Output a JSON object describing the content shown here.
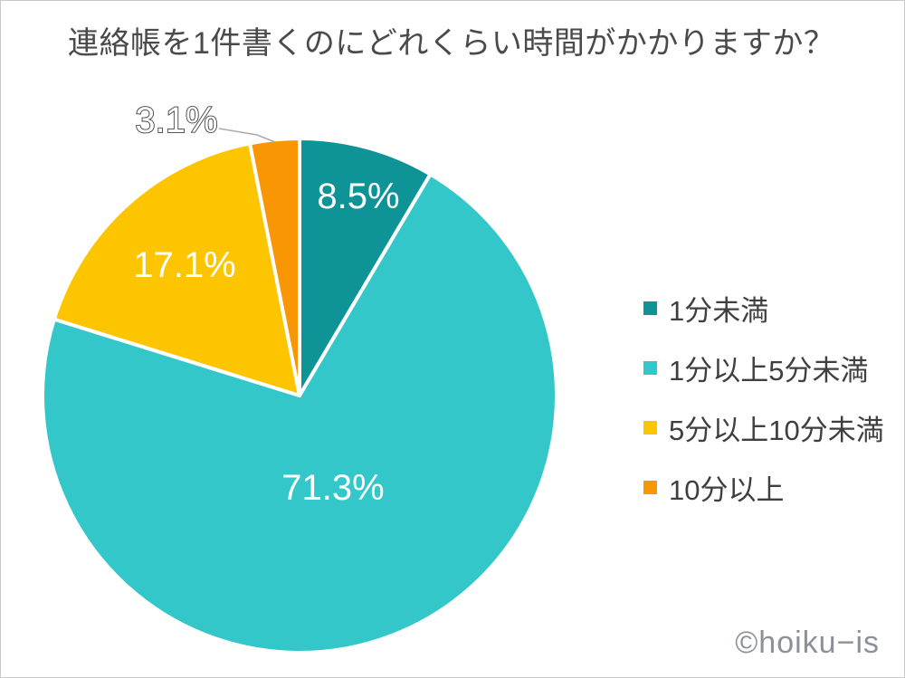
{
  "header": {
    "title": "連絡帳を1件書くのにどれくらい時間がかかりますか？"
  },
  "watermark": {
    "text": "©hoiku−is"
  },
  "chart_data": {
    "type": "pie",
    "title": "連絡帳を1件書くのにどれくらい時間がかかりますか？",
    "categories": [
      "1分未満",
      "1分以上5分未満",
      "5分以上10分未満",
      "10分以上"
    ],
    "values": [
      8.5,
      71.3,
      17.1,
      3.1
    ],
    "labels": [
      "8.5%",
      "71.3%",
      "17.1%",
      "3.1%"
    ],
    "colors": [
      "#0e9396",
      "#33c7ca",
      "#fdc500",
      "#f99603"
    ],
    "label_color": "#ffffff",
    "outside_label_outline_color": "#3f3f3f",
    "leader_line_color": "#a9a9a9",
    "start_angle_deg": 0,
    "direction": "clockwise",
    "legend_position": "right",
    "total": 100.0
  }
}
